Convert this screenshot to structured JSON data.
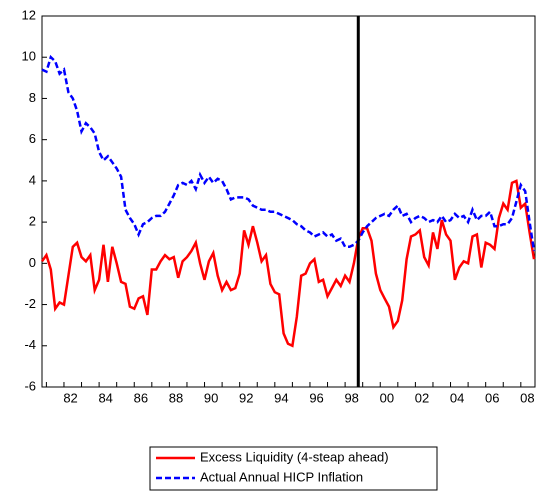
{
  "chart_data": {
    "type": "line",
    "categories": [
      null,
      null,
      null,
      null,
      null,
      "82",
      null,
      null,
      null,
      null,
      null,
      null,
      null,
      "84",
      null,
      null,
      null,
      null,
      null,
      null,
      null,
      "86",
      null,
      null,
      null,
      null,
      null,
      null,
      null,
      "88",
      null,
      null,
      null,
      null,
      null,
      null,
      null,
      "90",
      null,
      null,
      null,
      null,
      null,
      null,
      null,
      "92",
      null,
      null,
      null,
      null,
      null,
      null,
      null,
      "94",
      null,
      null,
      null,
      null,
      null,
      null,
      null,
      "96",
      null,
      null,
      null,
      null,
      null,
      null,
      null,
      "98",
      null,
      null,
      null,
      null,
      null,
      null,
      null,
      "00",
      null,
      null,
      null,
      null,
      null,
      null,
      null,
      "02",
      null,
      null,
      null,
      null,
      null,
      null,
      null,
      "04",
      null,
      null,
      null,
      null,
      null,
      null,
      null,
      "06",
      null,
      null,
      null,
      null,
      null,
      null,
      null,
      "08",
      null,
      null,
      null
    ],
    "series": [
      {
        "name": "Excess Liquidity (4-steap ahead)",
        "color": "#ff0000",
        "style": "solid",
        "values": [
          0.1,
          0.4,
          -0.3,
          -2.2,
          -1.9,
          -2.0,
          -0.6,
          0.8,
          1.0,
          0.3,
          0.1,
          0.4,
          -1.3,
          -0.8,
          0.9,
          -0.9,
          0.8,
          0.0,
          -0.9,
          -1.0,
          -2.1,
          -2.2,
          -1.7,
          -1.6,
          -2.5,
          -0.3,
          -0.3,
          0.1,
          0.4,
          0.2,
          0.3,
          -0.7,
          0.1,
          0.3,
          0.6,
          1.0,
          0.0,
          -0.8,
          0.1,
          0.5,
          -0.6,
          -1.3,
          -0.9,
          -1.3,
          -1.2,
          -0.5,
          1.6,
          0.9,
          1.8,
          1.0,
          0.1,
          0.4,
          -1.0,
          -1.4,
          -1.5,
          -3.4,
          -3.9,
          -4.0,
          -2.6,
          -0.6,
          -0.5,
          0.0,
          0.2,
          -0.9,
          -0.8,
          -1.6,
          -1.2,
          -0.8,
          -1.1,
          -0.6,
          -0.9,
          0.0,
          1.2,
          1.7,
          1.7,
          1.1,
          -0.5,
          -1.3,
          -1.7,
          -2.1,
          -3.1,
          -2.8,
          -1.8,
          0.2,
          1.3,
          1.4,
          1.6,
          0.3,
          -0.1,
          1.5,
          0.7,
          2.1,
          1.4,
          1.1,
          -0.8,
          -0.2,
          0.1,
          0.0,
          1.3,
          1.4,
          -0.2,
          1.0,
          0.9,
          0.7,
          2.2,
          2.9,
          2.6,
          3.9,
          4.0,
          2.7,
          2.9,
          1.5,
          0.2
        ]
      },
      {
        "name": "Actual Annual HICP Inflation",
        "color": "#0000ff",
        "style": "dashed",
        "values": [
          9.4,
          9.3,
          10.0,
          9.8,
          9.2,
          9.4,
          8.3,
          8.0,
          7.4,
          6.4,
          6.8,
          6.6,
          6.3,
          5.4,
          5.0,
          5.2,
          4.9,
          4.6,
          4.2,
          2.6,
          2.2,
          1.9,
          1.4,
          1.9,
          2.0,
          2.2,
          2.3,
          2.3,
          2.5,
          2.9,
          3.3,
          3.8,
          3.9,
          3.8,
          4.0,
          3.6,
          4.3,
          3.9,
          4.2,
          3.9,
          4.1,
          4.0,
          3.6,
          3.1,
          3.2,
          3.2,
          3.2,
          3.1,
          2.8,
          2.7,
          2.6,
          2.6,
          2.5,
          2.5,
          2.4,
          2.3,
          2.2,
          2.1,
          1.9,
          1.8,
          1.6,
          1.5,
          1.3,
          1.4,
          1.5,
          1.3,
          1.4,
          1.1,
          1.2,
          0.8,
          0.8,
          0.9,
          1.1,
          1.5,
          1.8,
          2.0,
          2.2,
          2.3,
          2.4,
          2.3,
          2.6,
          2.8,
          2.3,
          2.4,
          2.0,
          2.2,
          2.3,
          2.2,
          2.0,
          2.1,
          2.0,
          2.3,
          2.0,
          2.1,
          2.4,
          2.2,
          2.3,
          2.0,
          2.6,
          2.1,
          2.3,
          2.3,
          2.5,
          1.8,
          1.8,
          1.9,
          1.9,
          2.2,
          3.0,
          3.8,
          3.5,
          2.0,
          0.6
        ]
      }
    ],
    "ylim": [
      -6,
      12
    ],
    "yticks": [
      -6,
      -4,
      -2,
      0,
      2,
      4,
      6,
      8,
      10,
      12
    ],
    "vline": 72,
    "legend": "bottom",
    "grid": false
  }
}
